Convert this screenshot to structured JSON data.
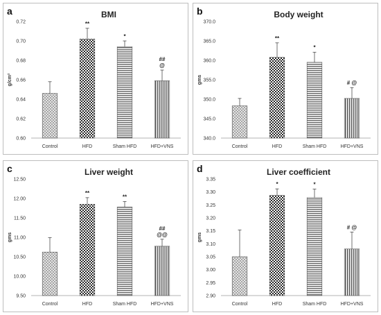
{
  "panels": [
    {
      "letter": "a"
    },
    {
      "letter": "b"
    },
    {
      "letter": "c"
    },
    {
      "letter": "d"
    }
  ],
  "chart_data": [
    {
      "type": "bar",
      "title": "BMI",
      "ylabel": "g/cm²",
      "xlabel": "",
      "categories": [
        "Control",
        "HFD",
        "Sham HFD",
        "HFD+VNS"
      ],
      "values": [
        0.646,
        0.702,
        0.694,
        0.659
      ],
      "errors": [
        0.012,
        0.011,
        0.006,
        0.011
      ],
      "annotations": [
        [],
        [
          "**"
        ],
        [
          "*"
        ],
        [
          "##",
          "@"
        ]
      ],
      "ylim": [
        0.6,
        0.72
      ],
      "yticks": [
        0.6,
        0.62,
        0.64,
        0.66,
        0.68,
        0.7,
        0.72
      ],
      "tick_decimals": 2,
      "patterns": [
        "crosshatch",
        "checker",
        "hstripe",
        "vstripe"
      ],
      "grid": false,
      "legend": "none"
    },
    {
      "type": "bar",
      "title": "Body weight",
      "ylabel": "gms",
      "xlabel": "",
      "categories": [
        "Control",
        "HFD",
        "Sham HFD",
        "HFD+VNS"
      ],
      "values": [
        348.3,
        360.8,
        359.5,
        350.2
      ],
      "errors": [
        1.9,
        3.7,
        2.6,
        2.8
      ],
      "annotations": [
        [],
        [
          "**"
        ],
        [
          "*"
        ],
        [
          "# @"
        ]
      ],
      "ylim": [
        340,
        370
      ],
      "yticks": [
        340,
        345,
        350,
        355,
        360,
        365,
        370
      ],
      "tick_decimals": 1,
      "patterns": [
        "crosshatch",
        "checker",
        "hstripe",
        "vstripe"
      ],
      "grid": false,
      "legend": "none"
    },
    {
      "type": "bar",
      "title": "Liver  weight",
      "ylabel": "gms",
      "xlabel": "",
      "categories": [
        "Control",
        "HFD",
        "Sham HFD",
        "HFD+VNS"
      ],
      "values": [
        10.62,
        11.85,
        11.78,
        10.77
      ],
      "errors": [
        0.37,
        0.17,
        0.14,
        0.18
      ],
      "annotations": [
        [],
        [
          "**"
        ],
        [
          "**"
        ],
        [
          "##",
          "@@"
        ]
      ],
      "ylim": [
        9.5,
        12.5
      ],
      "yticks": [
        9.5,
        10.0,
        10.5,
        11.0,
        11.5,
        12.0,
        12.5
      ],
      "tick_decimals": 2,
      "patterns": [
        "crosshatch",
        "checker",
        "hstripe",
        "vstripe"
      ],
      "grid": false,
      "legend": "none"
    },
    {
      "type": "bar",
      "title": "Liver coefficient",
      "ylabel": "gms",
      "xlabel": "",
      "categories": [
        "Control",
        "HFD",
        "Sham HFD",
        "HFD+VNS"
      ],
      "values": [
        3.05,
        3.287,
        3.278,
        3.08
      ],
      "errors": [
        0.103,
        0.025,
        0.033,
        0.065
      ],
      "annotations": [
        [],
        [
          "*"
        ],
        [
          "*"
        ],
        [
          "# @"
        ]
      ],
      "ylim": [
        2.9,
        3.35
      ],
      "yticks": [
        2.9,
        2.95,
        3.0,
        3.05,
        3.1,
        3.15,
        3.2,
        3.25,
        3.3,
        3.35
      ],
      "tick_decimals": 2,
      "patterns": [
        "crosshatch",
        "checker",
        "hstripe",
        "vstripe"
      ],
      "grid": false,
      "legend": "none"
    }
  ]
}
